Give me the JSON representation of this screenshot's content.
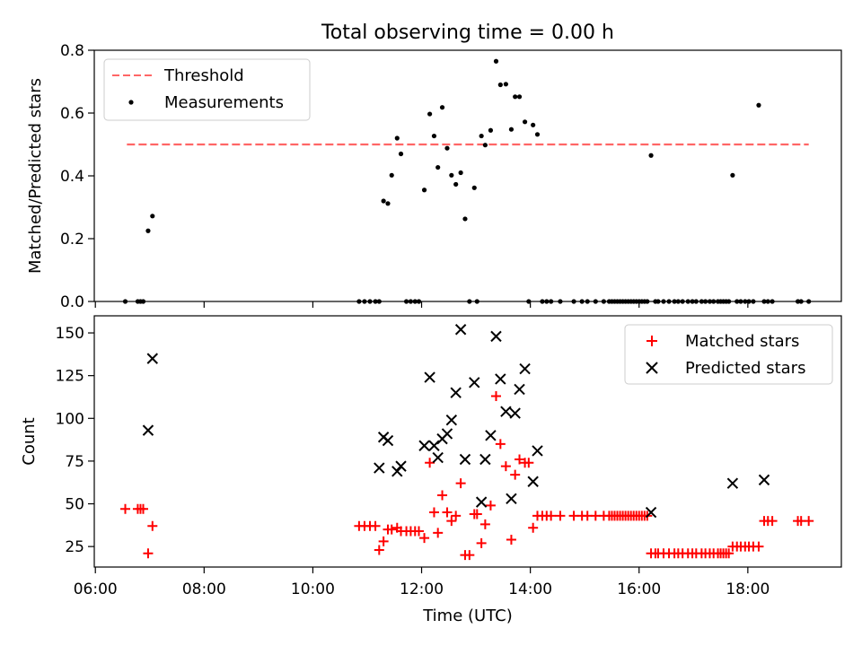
{
  "title": "Total observing time = 0.00 h",
  "chart_data": [
    {
      "type": "scatter",
      "panel": "top",
      "xlabel": "",
      "ylabel": "Matched/Predicted stars",
      "xlim_hours": [
        5.98,
        19.72
      ],
      "ylim": [
        0,
        0.8
      ],
      "yticks": [
        0.0,
        0.2,
        0.4,
        0.6,
        0.8
      ],
      "ytick_labels": [
        "0.0",
        "0.2",
        "0.4",
        "0.6",
        "0.8"
      ],
      "grid": false,
      "legend_position": "top-left",
      "series": [
        {
          "name": "Threshold",
          "kind": "dashed-line",
          "color": "#ff6666",
          "x": [
            6.58,
            19.12
          ],
          "y": [
            0.5,
            0.5
          ]
        },
        {
          "name": "Measurements",
          "kind": "points",
          "color": "#000000",
          "x": [
            6.55,
            6.78,
            6.83,
            6.88,
            6.97,
            7.05,
            10.85,
            10.95,
            11.05,
            11.15,
            11.22,
            11.3,
            11.38,
            11.45,
            11.55,
            11.62,
            11.72,
            11.8,
            11.88,
            11.95,
            12.05,
            12.15,
            12.23,
            12.3,
            12.38,
            12.47,
            12.55,
            12.63,
            12.72,
            12.8,
            12.88,
            12.97,
            13.02,
            13.1,
            13.17,
            13.27,
            13.37,
            13.45,
            13.55,
            13.65,
            13.72,
            13.8,
            13.9,
            13.97,
            14.05,
            14.13,
            14.22,
            14.3,
            14.38,
            14.55,
            14.8,
            14.95,
            15.05,
            15.2,
            15.35,
            15.45,
            15.5,
            15.55,
            15.6,
            15.65,
            15.7,
            15.75,
            15.8,
            15.85,
            15.9,
            15.95,
            16.0,
            16.05,
            16.1,
            16.15,
            16.22,
            16.3,
            16.35,
            16.45,
            16.55,
            16.65,
            16.72,
            16.8,
            16.9,
            16.98,
            17.05,
            17.15,
            17.22,
            17.3,
            17.37,
            17.45,
            17.5,
            17.55,
            17.6,
            17.65,
            17.72,
            17.8,
            17.87,
            17.95,
            18.02,
            18.1,
            18.2,
            18.3,
            18.37,
            18.45,
            18.92,
            18.98,
            19.12
          ],
          "y": [
            0,
            0,
            0,
            0,
            0.225,
            0.272,
            0,
            0,
            0,
            0,
            0,
            0.32,
            0.312,
            0.402,
            0.52,
            0.47,
            0,
            0,
            0,
            0,
            0.355,
            0.597,
            0.527,
            0.427,
            0.618,
            0.488,
            0.402,
            0.373,
            0.41,
            0.263,
            0,
            0.362,
            0,
            0.527,
            0.498,
            0.545,
            0.765,
            0.69,
            0.692,
            0.548,
            0.652,
            0.652,
            0.572,
            0,
            0.562,
            0.532,
            0,
            0,
            0,
            0,
            0,
            0,
            0,
            0,
            0,
            0,
            0,
            0,
            0,
            0,
            0,
            0,
            0,
            0,
            0,
            0,
            0,
            0,
            0,
            0,
            0.465,
            0,
            0,
            0,
            0,
            0,
            0,
            0,
            0,
            0,
            0,
            0,
            0,
            0,
            0,
            0,
            0,
            0,
            0,
            0,
            0.402,
            0,
            0,
            0,
            0,
            0,
            0.625,
            0,
            0,
            0,
            0,
            0,
            0
          ]
        }
      ]
    },
    {
      "type": "scatter",
      "panel": "bottom",
      "xlabel": "Time (UTC)",
      "ylabel": "Count",
      "xlim_hours": [
        5.98,
        19.72
      ],
      "ylim": [
        13,
        160
      ],
      "xticks_hours": [
        6,
        8,
        10,
        12,
        14,
        16,
        18
      ],
      "xtick_labels": [
        "06:00",
        "08:00",
        "10:00",
        "12:00",
        "14:00",
        "16:00",
        "18:00"
      ],
      "yticks": [
        25,
        50,
        75,
        100,
        125,
        150
      ],
      "ytick_labels": [
        "25",
        "50",
        "75",
        "100",
        "125",
        "150"
      ],
      "grid": false,
      "legend_position": "top-right",
      "series": [
        {
          "name": "Matched stars",
          "marker": "plus",
          "color": "#ff0000",
          "x": [
            6.55,
            6.78,
            6.83,
            6.88,
            6.97,
            7.05,
            10.85,
            10.95,
            11.05,
            11.15,
            11.22,
            11.3,
            11.38,
            11.45,
            11.55,
            11.62,
            11.72,
            11.8,
            11.88,
            11.95,
            12.05,
            12.15,
            12.23,
            12.3,
            12.38,
            12.47,
            12.55,
            12.63,
            12.72,
            12.8,
            12.88,
            12.97,
            13.02,
            13.1,
            13.17,
            13.27,
            13.37,
            13.45,
            13.55,
            13.65,
            13.72,
            13.8,
            13.9,
            13.97,
            14.05,
            14.13,
            14.22,
            14.3,
            14.38,
            14.55,
            14.8,
            14.95,
            15.05,
            15.2,
            15.35,
            15.45,
            15.5,
            15.55,
            15.6,
            15.65,
            15.7,
            15.75,
            15.8,
            15.85,
            15.9,
            15.95,
            16.0,
            16.05,
            16.1,
            16.15,
            16.22,
            16.3,
            16.35,
            16.45,
            16.55,
            16.65,
            16.72,
            16.8,
            16.9,
            16.98,
            17.05,
            17.15,
            17.22,
            17.3,
            17.37,
            17.45,
            17.5,
            17.55,
            17.6,
            17.65,
            17.72,
            17.8,
            17.87,
            17.95,
            18.02,
            18.1,
            18.2,
            18.3,
            18.37,
            18.45,
            18.92,
            18.98,
            19.12
          ],
          "y": [
            47,
            47,
            47,
            47,
            21,
            37,
            37,
            37,
            37,
            37,
            23,
            28,
            35,
            35,
            36,
            34,
            34,
            34,
            34,
            34,
            30,
            74,
            45,
            33,
            55,
            45,
            40,
            43,
            62,
            20,
            20,
            44,
            44,
            27,
            38,
            49,
            113,
            85,
            72,
            29,
            67,
            76,
            74,
            74,
            36,
            43,
            43,
            43,
            43,
            43,
            43,
            43,
            43,
            43,
            43,
            43,
            43,
            43,
            43,
            43,
            43,
            43,
            43,
            43,
            43,
            43,
            43,
            43,
            43,
            43,
            21,
            21,
            21,
            21,
            21,
            21,
            21,
            21,
            21,
            21,
            21,
            21,
            21,
            21,
            21,
            21,
            21,
            21,
            21,
            21,
            25,
            25,
            25,
            25,
            25,
            25,
            25,
            40,
            40,
            40,
            40,
            40,
            40
          ]
        },
        {
          "name": "Predicted stars",
          "marker": "x",
          "color": "#000000",
          "x": [
            6.97,
            7.05,
            11.22,
            11.3,
            11.38,
            11.55,
            11.62,
            12.05,
            12.15,
            12.23,
            12.3,
            12.38,
            12.47,
            12.55,
            12.63,
            12.72,
            12.8,
            12.97,
            13.1,
            13.17,
            13.27,
            13.37,
            13.45,
            13.55,
            13.65,
            13.72,
            13.8,
            13.9,
            14.05,
            14.13,
            16.22,
            17.72,
            18.3
          ],
          "y": [
            93,
            135,
            71,
            89,
            87,
            69,
            72,
            84,
            124,
            84,
            77,
            88,
            91,
            99,
            115,
            152,
            76,
            121,
            51,
            76,
            90,
            148,
            123,
            104,
            53,
            103,
            117,
            129,
            63,
            81,
            45,
            62,
            64
          ]
        }
      ]
    }
  ]
}
